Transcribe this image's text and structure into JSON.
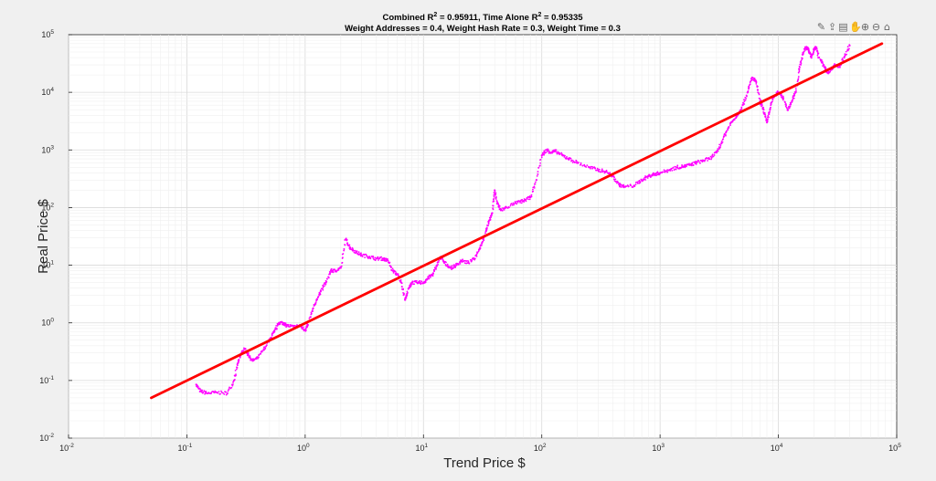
{
  "toolbar": {
    "icons": [
      "brush-icon",
      "export-icon",
      "data-tips-icon",
      "pan-icon",
      "zoom-in-icon",
      "zoom-out-icon",
      "home-icon"
    ],
    "glyphs": [
      "✎",
      "⇪",
      "▤",
      "✋",
      "⊕",
      "⊖",
      "⌂"
    ]
  },
  "chart_data": {
    "type": "scatter",
    "title_line1_prefix": "Combined R",
    "title_line1_sup1": "2",
    "title_line1_mid": " = 0.95911, Time Alone R",
    "title_line1_sup2": "2",
    "title_line1_suffix": " = 0.95335",
    "title_line2": "Weight Addresses = 0.4, Weight Hash Rate = 0.3, Weight Time = 0.3",
    "xlabel": "Trend Price $",
    "ylabel": "Real Price $",
    "xscale": "log",
    "yscale": "log",
    "xlim": [
      0.01,
      100000
    ],
    "ylim": [
      0.01,
      100000
    ],
    "grid": true,
    "minor_grid": true,
    "x_ticks": [
      {
        "base": "10",
        "exp": "-2"
      },
      {
        "base": "10",
        "exp": "-1"
      },
      {
        "base": "10",
        "exp": "0"
      },
      {
        "base": "10",
        "exp": "1"
      },
      {
        "base": "10",
        "exp": "2"
      },
      {
        "base": "10",
        "exp": "3"
      },
      {
        "base": "10",
        "exp": "4"
      },
      {
        "base": "10",
        "exp": "5"
      }
    ],
    "y_ticks": [
      {
        "base": "10",
        "exp": "-2"
      },
      {
        "base": "10",
        "exp": "-1"
      },
      {
        "base": "10",
        "exp": "0"
      },
      {
        "base": "10",
        "exp": "1"
      },
      {
        "base": "10",
        "exp": "2"
      },
      {
        "base": "10",
        "exp": "3"
      },
      {
        "base": "10",
        "exp": "4"
      },
      {
        "base": "10",
        "exp": "5"
      }
    ],
    "series": [
      {
        "kind": "scatter",
        "color": "#ff00ff",
        "points": [
          [
            0.12,
            0.085
          ],
          [
            0.13,
            0.065
          ],
          [
            0.15,
            0.06
          ],
          [
            0.18,
            0.062
          ],
          [
            0.22,
            0.06
          ],
          [
            0.25,
            0.1
          ],
          [
            0.27,
            0.2
          ],
          [
            0.29,
            0.3
          ],
          [
            0.31,
            0.35
          ],
          [
            0.33,
            0.28
          ],
          [
            0.36,
            0.22
          ],
          [
            0.4,
            0.25
          ],
          [
            0.45,
            0.35
          ],
          [
            0.5,
            0.5
          ],
          [
            0.55,
            0.7
          ],
          [
            0.6,
            1.0
          ],
          [
            0.65,
            1.0
          ],
          [
            0.7,
            0.9
          ],
          [
            0.8,
            0.85
          ],
          [
            0.9,
            0.9
          ],
          [
            1.0,
            0.75
          ],
          [
            1.05,
            0.9
          ],
          [
            1.15,
            1.6
          ],
          [
            1.25,
            2.5
          ],
          [
            1.35,
            3.5
          ],
          [
            1.5,
            5
          ],
          [
            1.65,
            8
          ],
          [
            1.8,
            8
          ],
          [
            2.0,
            9
          ],
          [
            2.2,
            28
          ],
          [
            2.4,
            20
          ],
          [
            2.7,
            17
          ],
          [
            3.0,
            15
          ],
          [
            3.5,
            14
          ],
          [
            4.0,
            13
          ],
          [
            4.5,
            13
          ],
          [
            5.0,
            12
          ],
          [
            5.5,
            8
          ],
          [
            6.0,
            7
          ],
          [
            6.5,
            5
          ],
          [
            7.0,
            2.5
          ],
          [
            7.5,
            4
          ],
          [
            8.0,
            5
          ],
          [
            9.0,
            5
          ],
          [
            10,
            5
          ],
          [
            11,
            6
          ],
          [
            12,
            7
          ],
          [
            13,
            10
          ],
          [
            14,
            14
          ],
          [
            15,
            11
          ],
          [
            17,
            9
          ],
          [
            19,
            10
          ],
          [
            21,
            12
          ],
          [
            24,
            11
          ],
          [
            27,
            13
          ],
          [
            30,
            20
          ],
          [
            32,
            28
          ],
          [
            34,
            40
          ],
          [
            36,
            60
          ],
          [
            38,
            80
          ],
          [
            40,
            200
          ],
          [
            42,
            120
          ],
          [
            45,
            90
          ],
          [
            50,
            100
          ],
          [
            60,
            120
          ],
          [
            70,
            130
          ],
          [
            80,
            150
          ],
          [
            90,
            300
          ],
          [
            100,
            800
          ],
          [
            110,
            1000
          ],
          [
            120,
            900
          ],
          [
            130,
            950
          ],
          [
            150,
            800
          ],
          [
            170,
            700
          ],
          [
            200,
            600
          ],
          [
            250,
            500
          ],
          [
            300,
            450
          ],
          [
            350,
            420
          ],
          [
            400,
            350
          ],
          [
            450,
            250
          ],
          [
            500,
            230
          ],
          [
            600,
            240
          ],
          [
            700,
            300
          ],
          [
            800,
            350
          ],
          [
            900,
            380
          ],
          [
            1000,
            400
          ],
          [
            1200,
            450
          ],
          [
            1400,
            500
          ],
          [
            1600,
            520
          ],
          [
            1800,
            550
          ],
          [
            2000,
            600
          ],
          [
            2300,
            650
          ],
          [
            2600,
            700
          ],
          [
            3000,
            900
          ],
          [
            3300,
            1300
          ],
          [
            3600,
            2000
          ],
          [
            4000,
            3000
          ],
          [
            4500,
            4000
          ],
          [
            5000,
            6000
          ],
          [
            5500,
            10000
          ],
          [
            6000,
            18000
          ],
          [
            6500,
            15000
          ],
          [
            7000,
            7000
          ],
          [
            7500,
            5000
          ],
          [
            8000,
            3000
          ],
          [
            8500,
            5000
          ],
          [
            9000,
            8000
          ],
          [
            10000,
            10000
          ],
          [
            11000,
            8000
          ],
          [
            12000,
            5000
          ],
          [
            13000,
            7000
          ],
          [
            14000,
            10000
          ],
          [
            15000,
            25000
          ],
          [
            16000,
            45000
          ],
          [
            17000,
            60000
          ],
          [
            18000,
            55000
          ],
          [
            19000,
            40000
          ],
          [
            20000,
            55000
          ],
          [
            21000,
            60000
          ],
          [
            22000,
            40000
          ],
          [
            24000,
            30000
          ],
          [
            26000,
            22000
          ],
          [
            28000,
            25000
          ],
          [
            30000,
            30000
          ],
          [
            33000,
            28000
          ],
          [
            36000,
            40000
          ],
          [
            40000,
            65000
          ]
        ]
      },
      {
        "kind": "line",
        "color": "#ff0000",
        "x": [
          0.05,
          75000
        ],
        "y": [
          0.05,
          70000
        ]
      }
    ]
  }
}
